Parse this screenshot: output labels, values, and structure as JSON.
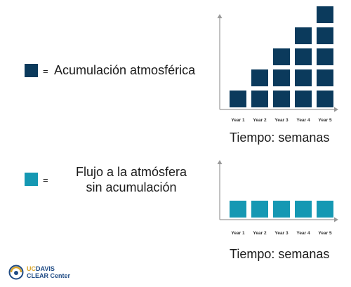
{
  "colors": {
    "accumulation": "#0b3a5c",
    "flow": "#1598b3",
    "axis": "#9a9a9a",
    "text": "#1a1a1a",
    "logo_gold": "#d9a52b",
    "logo_blue": "#1f4b85"
  },
  "legend": {
    "accumulation_eq": "=",
    "accumulation_label": "Acumulación atmosférica",
    "flow_eq": "=",
    "flow_label_line1": "Flujo a la atmósfera",
    "flow_label_line2": "sin acumulación"
  },
  "chart_data": [
    {
      "type": "bar",
      "categories": [
        "Year 1",
        "Year 2",
        "Year 3",
        "Year 4",
        "Year 5"
      ],
      "values": [
        1,
        2,
        3,
        4,
        5
      ],
      "xlabel": "Tiempo: semanas",
      "ylabel": "",
      "ylim": [
        0,
        5
      ],
      "unit_blocks": true
    },
    {
      "type": "bar",
      "categories": [
        "Year 1",
        "Year 2",
        "Year 3",
        "Year 4",
        "Year 5"
      ],
      "values": [
        1,
        1,
        1,
        1,
        1
      ],
      "xlabel": "Tiempo: semanas",
      "ylabel": "",
      "ylim": [
        0,
        5
      ],
      "unit_blocks": true
    }
  ],
  "logo": {
    "line1_part1": "UC",
    "line1_part2": "DAVIS",
    "line2": "CLEAR Center"
  }
}
